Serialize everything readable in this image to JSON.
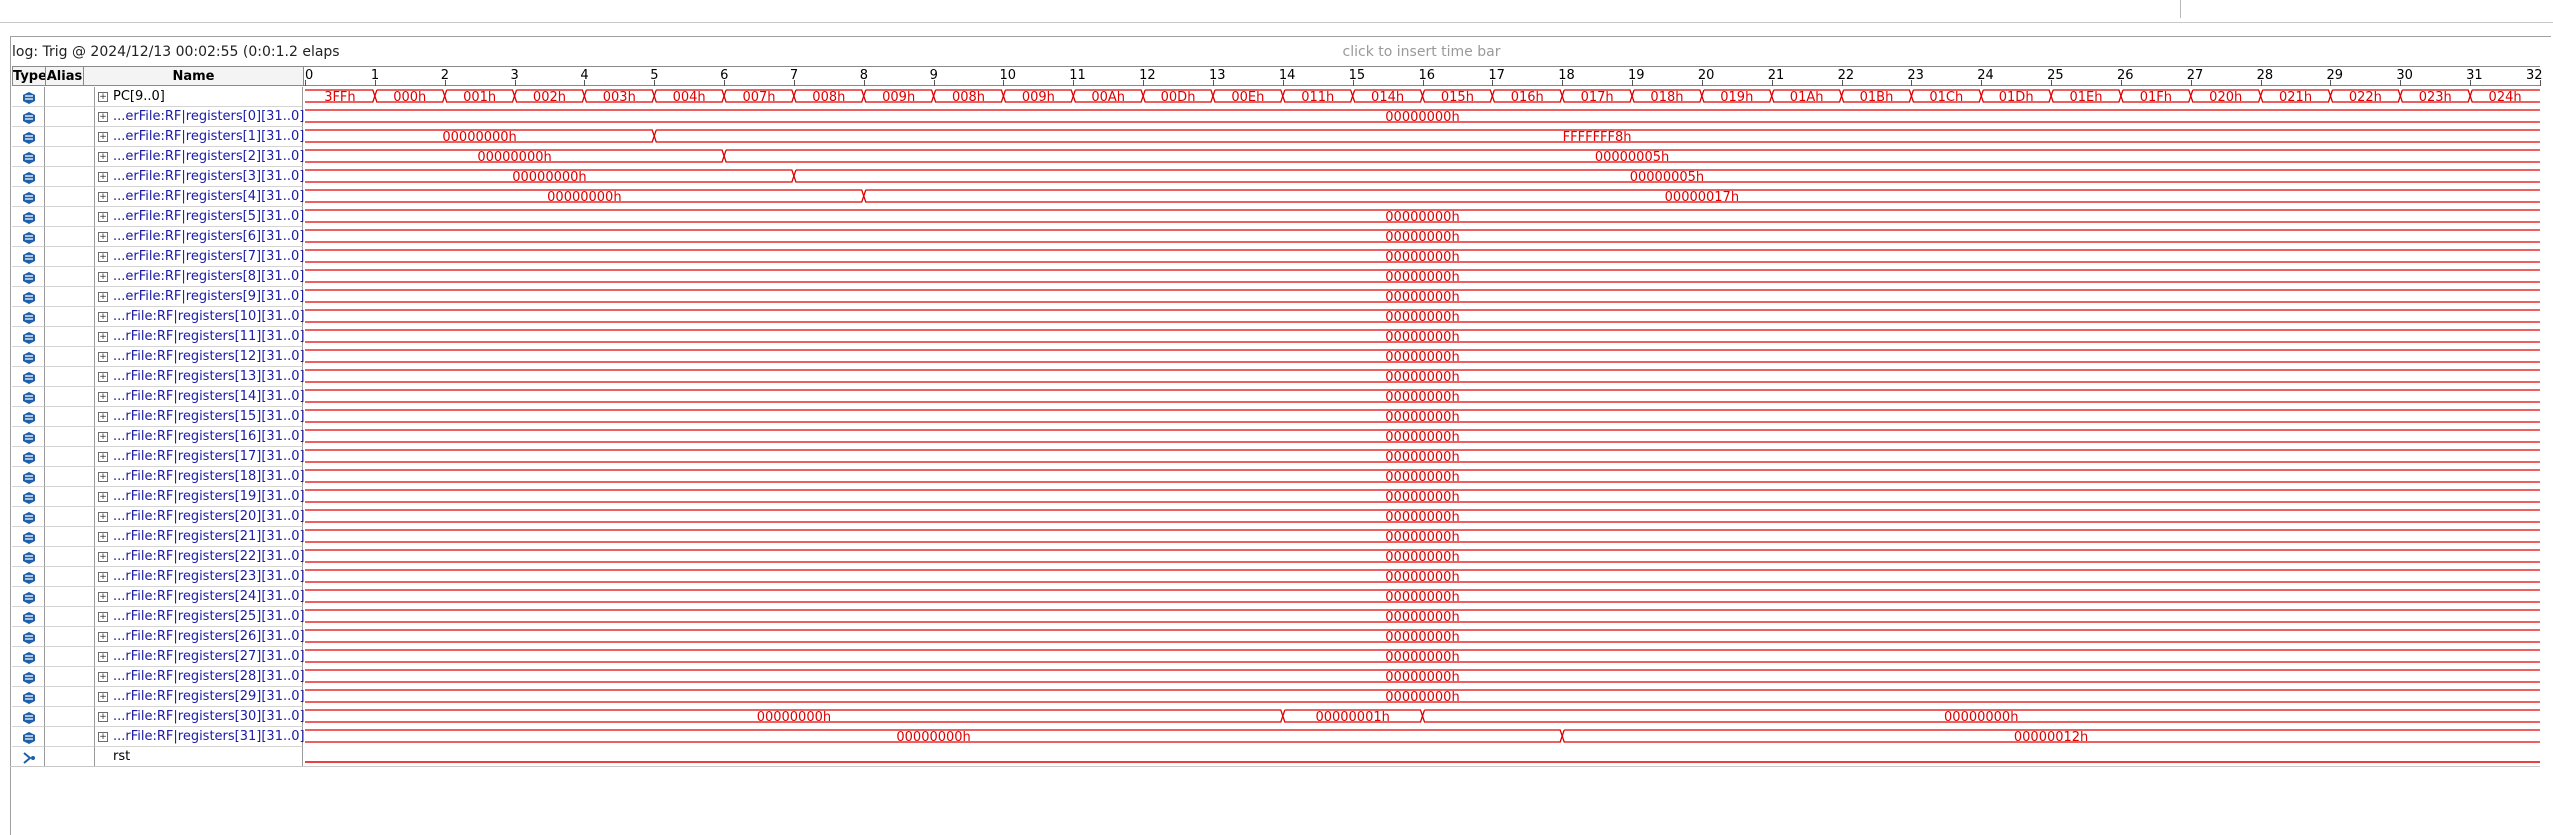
{
  "status_text": "log: Trig @ 2024/12/13 00:02:55 (0:0:1.2 elaps",
  "insert_bar_text": "click to insert time bar",
  "columns": {
    "type": "Type",
    "alias": "Alias",
    "name": "Name"
  },
  "ruler_ticks": [
    "0",
    "1",
    "2",
    "3",
    "4",
    "5",
    "6",
    "7",
    "8",
    "9",
    "10",
    "11",
    "12",
    "13",
    "14",
    "15",
    "16",
    "17",
    "18",
    "19",
    "20",
    "21",
    "22",
    "23",
    "24",
    "25",
    "26",
    "27",
    "28",
    "29",
    "30",
    "31",
    "32"
  ],
  "colors": {
    "wave": "#e00000",
    "name_blue": "#1a1aa6",
    "icon_blue": "#1d5fa8"
  },
  "signals": [
    {
      "name": "PC[9..0]",
      "style": "black",
      "icon": "bus-icon",
      "expand": "+",
      "segments": [
        {
          "from": 0,
          "to": 1,
          "label": "3FFh"
        },
        {
          "from": 1,
          "to": 2,
          "label": "000h"
        },
        {
          "from": 2,
          "to": 3,
          "label": "001h"
        },
        {
          "from": 3,
          "to": 4,
          "label": "002h"
        },
        {
          "from": 4,
          "to": 5,
          "label": "003h"
        },
        {
          "from": 5,
          "to": 6,
          "label": "004h"
        },
        {
          "from": 6,
          "to": 7,
          "label": "007h"
        },
        {
          "from": 7,
          "to": 8,
          "label": "008h"
        },
        {
          "from": 8,
          "to": 9,
          "label": "009h"
        },
        {
          "from": 9,
          "to": 10,
          "label": "008h"
        },
        {
          "from": 10,
          "to": 11,
          "label": "009h"
        },
        {
          "from": 11,
          "to": 12,
          "label": "00Ah"
        },
        {
          "from": 12,
          "to": 13,
          "label": "00Dh"
        },
        {
          "from": 13,
          "to": 14,
          "label": "00Eh"
        },
        {
          "from": 14,
          "to": 15,
          "label": "011h"
        },
        {
          "from": 15,
          "to": 16,
          "label": "014h"
        },
        {
          "from": 16,
          "to": 17,
          "label": "015h"
        },
        {
          "from": 17,
          "to": 18,
          "label": "016h"
        },
        {
          "from": 18,
          "to": 19,
          "label": "017h"
        },
        {
          "from": 19,
          "to": 20,
          "label": "018h"
        },
        {
          "from": 20,
          "to": 21,
          "label": "019h"
        },
        {
          "from": 21,
          "to": 22,
          "label": "01Ah"
        },
        {
          "from": 22,
          "to": 23,
          "label": "01Bh"
        },
        {
          "from": 23,
          "to": 24,
          "label": "01Ch"
        },
        {
          "from": 24,
          "to": 25,
          "label": "01Dh"
        },
        {
          "from": 25,
          "to": 26,
          "label": "01Eh"
        },
        {
          "from": 26,
          "to": 27,
          "label": "01Fh"
        },
        {
          "from": 27,
          "to": 28,
          "label": "020h"
        },
        {
          "from": 28,
          "to": 29,
          "label": "021h"
        },
        {
          "from": 29,
          "to": 30,
          "label": "022h"
        },
        {
          "from": 30,
          "to": 31,
          "label": "023h"
        },
        {
          "from": 31,
          "to": 32,
          "label": "024h"
        }
      ]
    },
    {
      "name": "...erFile:RF|registers[0][31..0]",
      "style": "blue",
      "icon": "bus-icon",
      "expand": "+",
      "segments": [
        {
          "from": 0,
          "to": 32,
          "label": "00000000h"
        }
      ]
    },
    {
      "name": "...erFile:RF|registers[1][31..0]",
      "style": "blue",
      "icon": "bus-icon",
      "expand": "+",
      "segments": [
        {
          "from": 0,
          "to": 5,
          "label": "00000000h"
        },
        {
          "from": 5,
          "to": 32,
          "label": "FFFFFFF8h"
        }
      ]
    },
    {
      "name": "...erFile:RF|registers[2][31..0]",
      "style": "blue",
      "icon": "bus-icon",
      "expand": "+",
      "segments": [
        {
          "from": 0,
          "to": 6,
          "label": "00000000h"
        },
        {
          "from": 6,
          "to": 32,
          "label": "00000005h"
        }
      ]
    },
    {
      "name": "...erFile:RF|registers[3][31..0]",
      "style": "blue",
      "icon": "bus-icon",
      "expand": "+",
      "segments": [
        {
          "from": 0,
          "to": 7,
          "label": "00000000h"
        },
        {
          "from": 7,
          "to": 32,
          "label": "00000005h"
        }
      ]
    },
    {
      "name": "...erFile:RF|registers[4][31..0]",
      "style": "blue",
      "icon": "bus-icon",
      "expand": "+",
      "segments": [
        {
          "from": 0,
          "to": 8,
          "label": "00000000h"
        },
        {
          "from": 8,
          "to": 32,
          "label": "00000017h"
        }
      ]
    },
    {
      "name": "...erFile:RF|registers[5][31..0]",
      "style": "blue",
      "icon": "bus-icon",
      "expand": "+",
      "segments": [
        {
          "from": 0,
          "to": 32,
          "label": "00000000h"
        }
      ]
    },
    {
      "name": "...erFile:RF|registers[6][31..0]",
      "style": "blue",
      "icon": "bus-icon",
      "expand": "+",
      "segments": [
        {
          "from": 0,
          "to": 32,
          "label": "00000000h"
        }
      ]
    },
    {
      "name": "...erFile:RF|registers[7][31..0]",
      "style": "blue",
      "icon": "bus-icon",
      "expand": "+",
      "segments": [
        {
          "from": 0,
          "to": 32,
          "label": "00000000h"
        }
      ]
    },
    {
      "name": "...erFile:RF|registers[8][31..0]",
      "style": "blue",
      "icon": "bus-icon",
      "expand": "+",
      "segments": [
        {
          "from": 0,
          "to": 32,
          "label": "00000000h"
        }
      ]
    },
    {
      "name": "...erFile:RF|registers[9][31..0]",
      "style": "blue",
      "icon": "bus-icon",
      "expand": "+",
      "segments": [
        {
          "from": 0,
          "to": 32,
          "label": "00000000h"
        }
      ]
    },
    {
      "name": "...rFile:RF|registers[10][31..0]",
      "style": "blue",
      "icon": "bus-icon",
      "expand": "+",
      "segments": [
        {
          "from": 0,
          "to": 32,
          "label": "00000000h"
        }
      ]
    },
    {
      "name": "...rFile:RF|registers[11][31..0]",
      "style": "blue",
      "icon": "bus-icon",
      "expand": "+",
      "segments": [
        {
          "from": 0,
          "to": 32,
          "label": "00000000h"
        }
      ]
    },
    {
      "name": "...rFile:RF|registers[12][31..0]",
      "style": "blue",
      "icon": "bus-icon",
      "expand": "+",
      "segments": [
        {
          "from": 0,
          "to": 32,
          "label": "00000000h"
        }
      ]
    },
    {
      "name": "...rFile:RF|registers[13][31..0]",
      "style": "blue",
      "icon": "bus-icon",
      "expand": "+",
      "segments": [
        {
          "from": 0,
          "to": 32,
          "label": "00000000h"
        }
      ]
    },
    {
      "name": "...rFile:RF|registers[14][31..0]",
      "style": "blue",
      "icon": "bus-icon",
      "expand": "+",
      "segments": [
        {
          "from": 0,
          "to": 32,
          "label": "00000000h"
        }
      ]
    },
    {
      "name": "...rFile:RF|registers[15][31..0]",
      "style": "blue",
      "icon": "bus-icon",
      "expand": "+",
      "segments": [
        {
          "from": 0,
          "to": 32,
          "label": "00000000h"
        }
      ]
    },
    {
      "name": "...rFile:RF|registers[16][31..0]",
      "style": "blue",
      "icon": "bus-icon",
      "expand": "+",
      "segments": [
        {
          "from": 0,
          "to": 32,
          "label": "00000000h"
        }
      ]
    },
    {
      "name": "...rFile:RF|registers[17][31..0]",
      "style": "blue",
      "icon": "bus-icon",
      "expand": "+",
      "segments": [
        {
          "from": 0,
          "to": 32,
          "label": "00000000h"
        }
      ]
    },
    {
      "name": "...rFile:RF|registers[18][31..0]",
      "style": "blue",
      "icon": "bus-icon",
      "expand": "+",
      "segments": [
        {
          "from": 0,
          "to": 32,
          "label": "00000000h"
        }
      ]
    },
    {
      "name": "...rFile:RF|registers[19][31..0]",
      "style": "blue",
      "icon": "bus-icon",
      "expand": "+",
      "segments": [
        {
          "from": 0,
          "to": 32,
          "label": "00000000h"
        }
      ]
    },
    {
      "name": "...rFile:RF|registers[20][31..0]",
      "style": "blue",
      "icon": "bus-icon",
      "expand": "+",
      "segments": [
        {
          "from": 0,
          "to": 32,
          "label": "00000000h"
        }
      ]
    },
    {
      "name": "...rFile:RF|registers[21][31..0]",
      "style": "blue",
      "icon": "bus-icon",
      "expand": "+",
      "segments": [
        {
          "from": 0,
          "to": 32,
          "label": "00000000h"
        }
      ]
    },
    {
      "name": "...rFile:RF|registers[22][31..0]",
      "style": "blue",
      "icon": "bus-icon",
      "expand": "+",
      "segments": [
        {
          "from": 0,
          "to": 32,
          "label": "00000000h"
        }
      ]
    },
    {
      "name": "...rFile:RF|registers[23][31..0]",
      "style": "blue",
      "icon": "bus-icon",
      "expand": "+",
      "segments": [
        {
          "from": 0,
          "to": 32,
          "label": "00000000h"
        }
      ]
    },
    {
      "name": "...rFile:RF|registers[24][31..0]",
      "style": "blue",
      "icon": "bus-icon",
      "expand": "+",
      "segments": [
        {
          "from": 0,
          "to": 32,
          "label": "00000000h"
        }
      ]
    },
    {
      "name": "...rFile:RF|registers[25][31..0]",
      "style": "blue",
      "icon": "bus-icon",
      "expand": "+",
      "segments": [
        {
          "from": 0,
          "to": 32,
          "label": "00000000h"
        }
      ]
    },
    {
      "name": "...rFile:RF|registers[26][31..0]",
      "style": "blue",
      "icon": "bus-icon",
      "expand": "+",
      "segments": [
        {
          "from": 0,
          "to": 32,
          "label": "00000000h"
        }
      ]
    },
    {
      "name": "...rFile:RF|registers[27][31..0]",
      "style": "blue",
      "icon": "bus-icon",
      "expand": "+",
      "segments": [
        {
          "from": 0,
          "to": 32,
          "label": "00000000h"
        }
      ]
    },
    {
      "name": "...rFile:RF|registers[28][31..0]",
      "style": "blue",
      "icon": "bus-icon",
      "expand": "+",
      "segments": [
        {
          "from": 0,
          "to": 32,
          "label": "00000000h"
        }
      ]
    },
    {
      "name": "...rFile:RF|registers[29][31..0]",
      "style": "blue",
      "icon": "bus-icon",
      "expand": "+",
      "segments": [
        {
          "from": 0,
          "to": 32,
          "label": "00000000h"
        }
      ]
    },
    {
      "name": "...rFile:RF|registers[30][31..0]",
      "style": "blue",
      "icon": "bus-icon",
      "expand": "+",
      "segments": [
        {
          "from": 0,
          "to": 14,
          "label": "00000000h"
        },
        {
          "from": 14,
          "to": 16,
          "label": "00000001h"
        },
        {
          "from": 16,
          "to": 32,
          "label": "00000000h"
        }
      ]
    },
    {
      "name": "...rFile:RF|registers[31][31..0]",
      "style": "blue",
      "icon": "bus-icon",
      "expand": "+",
      "segments": [
        {
          "from": 0,
          "to": 18,
          "label": "00000000h"
        },
        {
          "from": 18,
          "to": 32,
          "label": "00000012h"
        }
      ]
    },
    {
      "name": "rst",
      "style": "black",
      "icon": "input-pin-icon",
      "expand": "",
      "low": true,
      "segments": []
    }
  ]
}
